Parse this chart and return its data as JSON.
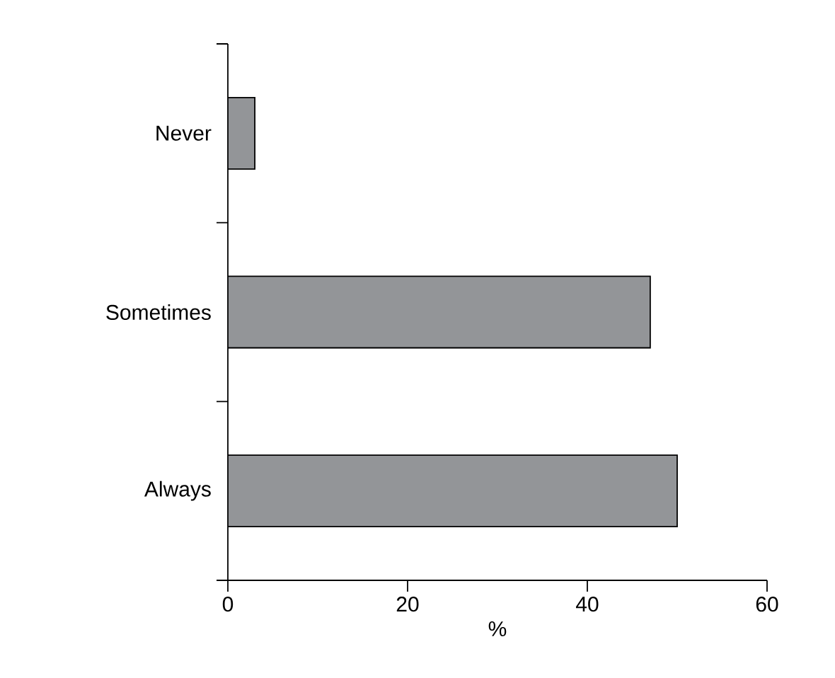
{
  "chart_data": {
    "type": "bar",
    "orientation": "horizontal",
    "categories": [
      "Never",
      "Sometimes",
      "Always"
    ],
    "values": [
      3,
      47,
      50
    ],
    "color": "#939598",
    "xlabel": "%",
    "xlim": [
      0,
      60
    ],
    "xticks": [
      0,
      20,
      40,
      60
    ],
    "grid": false
  }
}
